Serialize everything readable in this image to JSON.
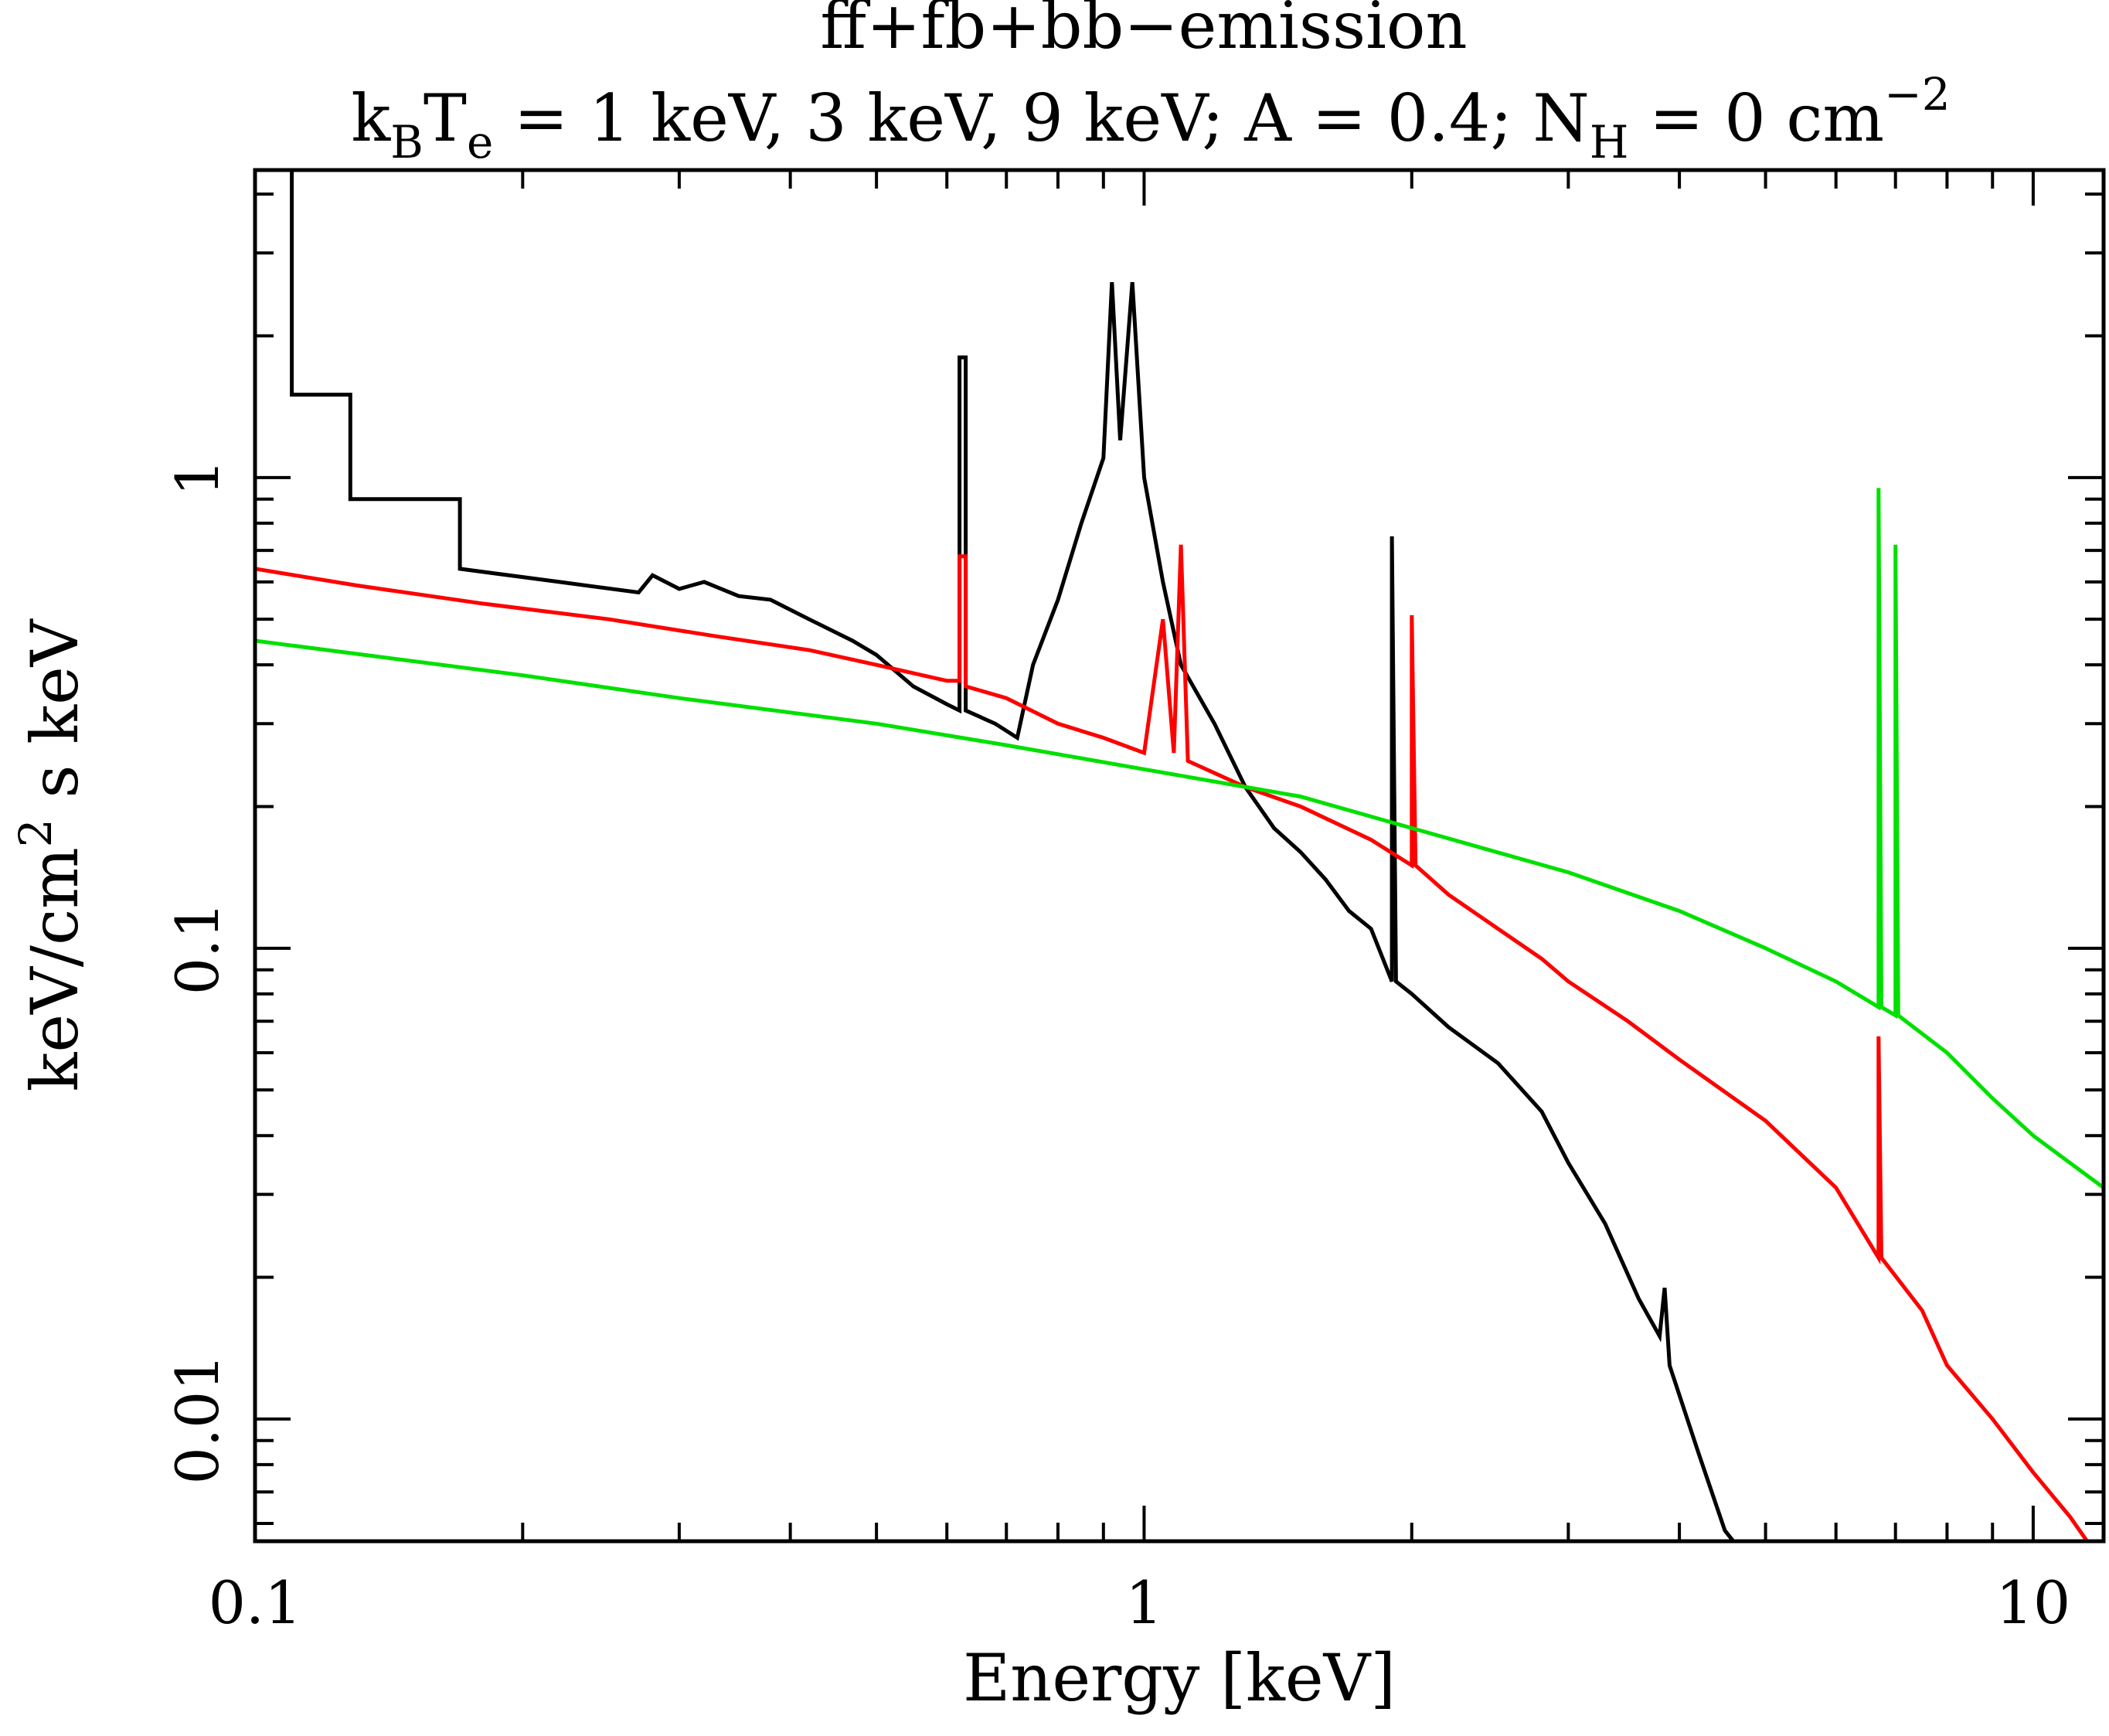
{
  "chart_data": {
    "type": "line",
    "title": "ff+fb+bb−emission",
    "subtitle_parts": {
      "k": "k",
      "k_sub": "B",
      "t": "T",
      "t_sub": "e",
      "mid": " = 1 keV, 3 keV, 9 keV; A = 0.4; N",
      "n_sub": "H",
      "end": " = 0 cm",
      "exp": "−2"
    },
    "xlabel": "Energy [keV]",
    "ylabel_parts": {
      "a": "keV/cm",
      "sup": "2",
      "b": " s keV"
    },
    "x_scale": "log",
    "y_scale": "log",
    "xlim": [
      0.1,
      12
    ],
    "ylim": [
      0.0055,
      4.5
    ],
    "x_ticks": [
      {
        "value": 0.1,
        "label": "0.1"
      },
      {
        "value": 1,
        "label": "1"
      },
      {
        "value": 10,
        "label": "10"
      }
    ],
    "y_ticks": [
      {
        "value": 0.01,
        "label": "0.01"
      },
      {
        "value": 0.1,
        "label": "0.1"
      },
      {
        "value": 1,
        "label": "1"
      }
    ],
    "series": [
      {
        "color": "#000000",
        "points": [
          [
            0.1,
            4.5
          ],
          [
            0.11,
            4.5
          ],
          [
            0.11,
            1.5
          ],
          [
            0.128,
            1.5
          ],
          [
            0.128,
            0.9
          ],
          [
            0.17,
            0.9
          ],
          [
            0.17,
            0.64
          ],
          [
            0.22,
            0.6
          ],
          [
            0.27,
            0.57
          ],
          [
            0.28,
            0.62
          ],
          [
            0.3,
            0.58
          ],
          [
            0.32,
            0.6
          ],
          [
            0.35,
            0.56
          ],
          [
            0.38,
            0.55
          ],
          [
            0.42,
            0.5
          ],
          [
            0.47,
            0.45
          ],
          [
            0.5,
            0.42
          ],
          [
            0.55,
            0.36
          ],
          [
            0.6,
            0.33
          ],
          [
            0.62,
            0.32
          ],
          [
            0.62,
            1.8
          ],
          [
            0.63,
            1.8
          ],
          [
            0.63,
            0.32
          ],
          [
            0.68,
            0.3
          ],
          [
            0.72,
            0.28
          ],
          [
            0.75,
            0.4
          ],
          [
            0.8,
            0.55
          ],
          [
            0.85,
            0.8
          ],
          [
            0.9,
            1.1
          ],
          [
            0.92,
            2.6
          ],
          [
            0.94,
            1.2
          ],
          [
            0.97,
            2.6
          ],
          [
            1.0,
            1.0
          ],
          [
            1.05,
            0.6
          ],
          [
            1.1,
            0.4
          ],
          [
            1.2,
            0.3
          ],
          [
            1.3,
            0.22
          ],
          [
            1.4,
            0.18
          ],
          [
            1.5,
            0.16
          ],
          [
            1.6,
            0.14
          ],
          [
            1.7,
            0.12
          ],
          [
            1.8,
            0.11
          ],
          [
            1.9,
            0.085
          ],
          [
            1.9,
            0.75
          ],
          [
            1.92,
            0.085
          ],
          [
            2.0,
            0.08
          ],
          [
            2.2,
            0.068
          ],
          [
            2.5,
            0.057
          ],
          [
            2.8,
            0.045
          ],
          [
            3.0,
            0.035
          ],
          [
            3.3,
            0.026
          ],
          [
            3.6,
            0.018
          ],
          [
            3.8,
            0.015
          ],
          [
            3.85,
            0.019
          ],
          [
            3.9,
            0.013
          ],
          [
            4.2,
            0.0085
          ],
          [
            4.5,
            0.0058
          ],
          [
            4.6,
            0.0055
          ]
        ]
      },
      {
        "color": "#ff0000",
        "points": [
          [
            0.1,
            0.64
          ],
          [
            0.13,
            0.59
          ],
          [
            0.18,
            0.54
          ],
          [
            0.25,
            0.5
          ],
          [
            0.33,
            0.46
          ],
          [
            0.42,
            0.43
          ],
          [
            0.5,
            0.4
          ],
          [
            0.6,
            0.37
          ],
          [
            0.62,
            0.37
          ],
          [
            0.62,
            0.68
          ],
          [
            0.63,
            0.68
          ],
          [
            0.63,
            0.36
          ],
          [
            0.7,
            0.34
          ],
          [
            0.8,
            0.3
          ],
          [
            0.9,
            0.28
          ],
          [
            1.0,
            0.26
          ],
          [
            1.05,
            0.5
          ],
          [
            1.08,
            0.26
          ],
          [
            1.1,
            0.72
          ],
          [
            1.12,
            0.25
          ],
          [
            1.3,
            0.22
          ],
          [
            1.5,
            0.2
          ],
          [
            1.8,
            0.17
          ],
          [
            2.0,
            0.15
          ],
          [
            2.0,
            0.51
          ],
          [
            2.02,
            0.15
          ],
          [
            2.2,
            0.13
          ],
          [
            2.5,
            0.11
          ],
          [
            2.8,
            0.095
          ],
          [
            3.0,
            0.085
          ],
          [
            3.5,
            0.07
          ],
          [
            4.0,
            0.058
          ],
          [
            5.0,
            0.043
          ],
          [
            6.0,
            0.031
          ],
          [
            6.7,
            0.022
          ],
          [
            6.7,
            0.065
          ],
          [
            6.75,
            0.022
          ],
          [
            7.5,
            0.017
          ],
          [
            8.0,
            0.013
          ],
          [
            9.0,
            0.01
          ],
          [
            10.0,
            0.0077
          ],
          [
            11.0,
            0.0062
          ],
          [
            11.5,
            0.0055
          ]
        ]
      },
      {
        "color": "#00e000",
        "points": [
          [
            0.1,
            0.45
          ],
          [
            0.2,
            0.38
          ],
          [
            0.3,
            0.34
          ],
          [
            0.5,
            0.3
          ],
          [
            0.7,
            0.27
          ],
          [
            1.0,
            0.24
          ],
          [
            1.5,
            0.21
          ],
          [
            2.0,
            0.18
          ],
          [
            3.0,
            0.145
          ],
          [
            4.0,
            0.12
          ],
          [
            5.0,
            0.1
          ],
          [
            6.0,
            0.085
          ],
          [
            6.7,
            0.075
          ],
          [
            6.7,
            0.95
          ],
          [
            6.75,
            0.075
          ],
          [
            7.0,
            0.072
          ],
          [
            7.0,
            0.72
          ],
          [
            7.05,
            0.072
          ],
          [
            8.0,
            0.06
          ],
          [
            9.0,
            0.048
          ],
          [
            10.0,
            0.04
          ],
          [
            11.0,
            0.035
          ],
          [
            12.0,
            0.031
          ]
        ]
      }
    ]
  }
}
